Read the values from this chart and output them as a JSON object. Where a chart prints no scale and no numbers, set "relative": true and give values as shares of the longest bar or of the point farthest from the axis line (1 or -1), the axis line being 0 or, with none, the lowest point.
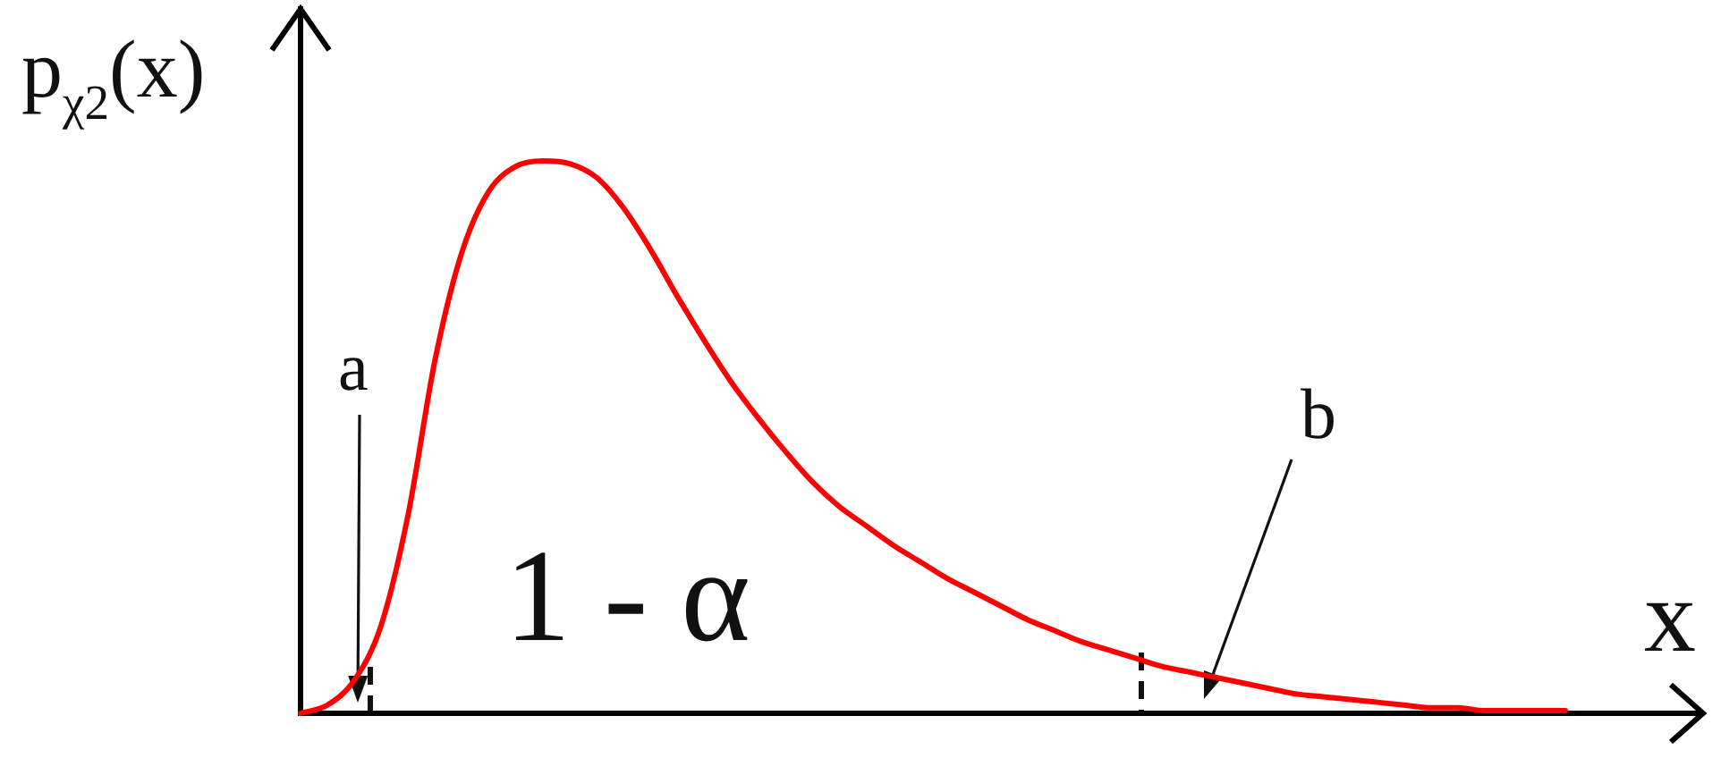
{
  "chart_data": {
    "type": "line",
    "relative": true,
    "color": "#ff0000",
    "ylabel": "p$_{χ2}$(x)",
    "xlabel": "x",
    "annotations": [
      "a",
      "b",
      "1 - α"
    ],
    "categories": [
      null,
      null,
      null,
      null,
      null,
      null,
      null,
      null,
      null,
      null,
      null,
      null,
      null,
      null,
      null,
      null,
      null,
      null,
      null,
      null,
      null,
      null,
      null,
      null,
      null,
      null,
      null,
      null,
      null,
      null,
      null,
      null,
      null,
      null,
      null,
      null,
      null,
      null,
      null,
      null,
      null,
      null,
      null,
      null,
      null,
      null,
      null,
      null
    ],
    "values": [
      0,
      0.015,
      0.06,
      0.16,
      0.36,
      0.64,
      0.835,
      0.945,
      0.99,
      1,
      0.995,
      0.97,
      0.915,
      0.84,
      0.755,
      0.675,
      0.6,
      0.535,
      0.475,
      0.42,
      0.375,
      0.34,
      0.305,
      0.275,
      0.245,
      0.22,
      0.195,
      0.17,
      0.15,
      0.13,
      0.115,
      0.1,
      0.085,
      0.075,
      0.065,
      0.055,
      0.045,
      0.035,
      0.03,
      0.025,
      0.02,
      0.015,
      0.01,
      0.01,
      0.005,
      0.005,
      0.005,
      0.005
    ]
  }
}
